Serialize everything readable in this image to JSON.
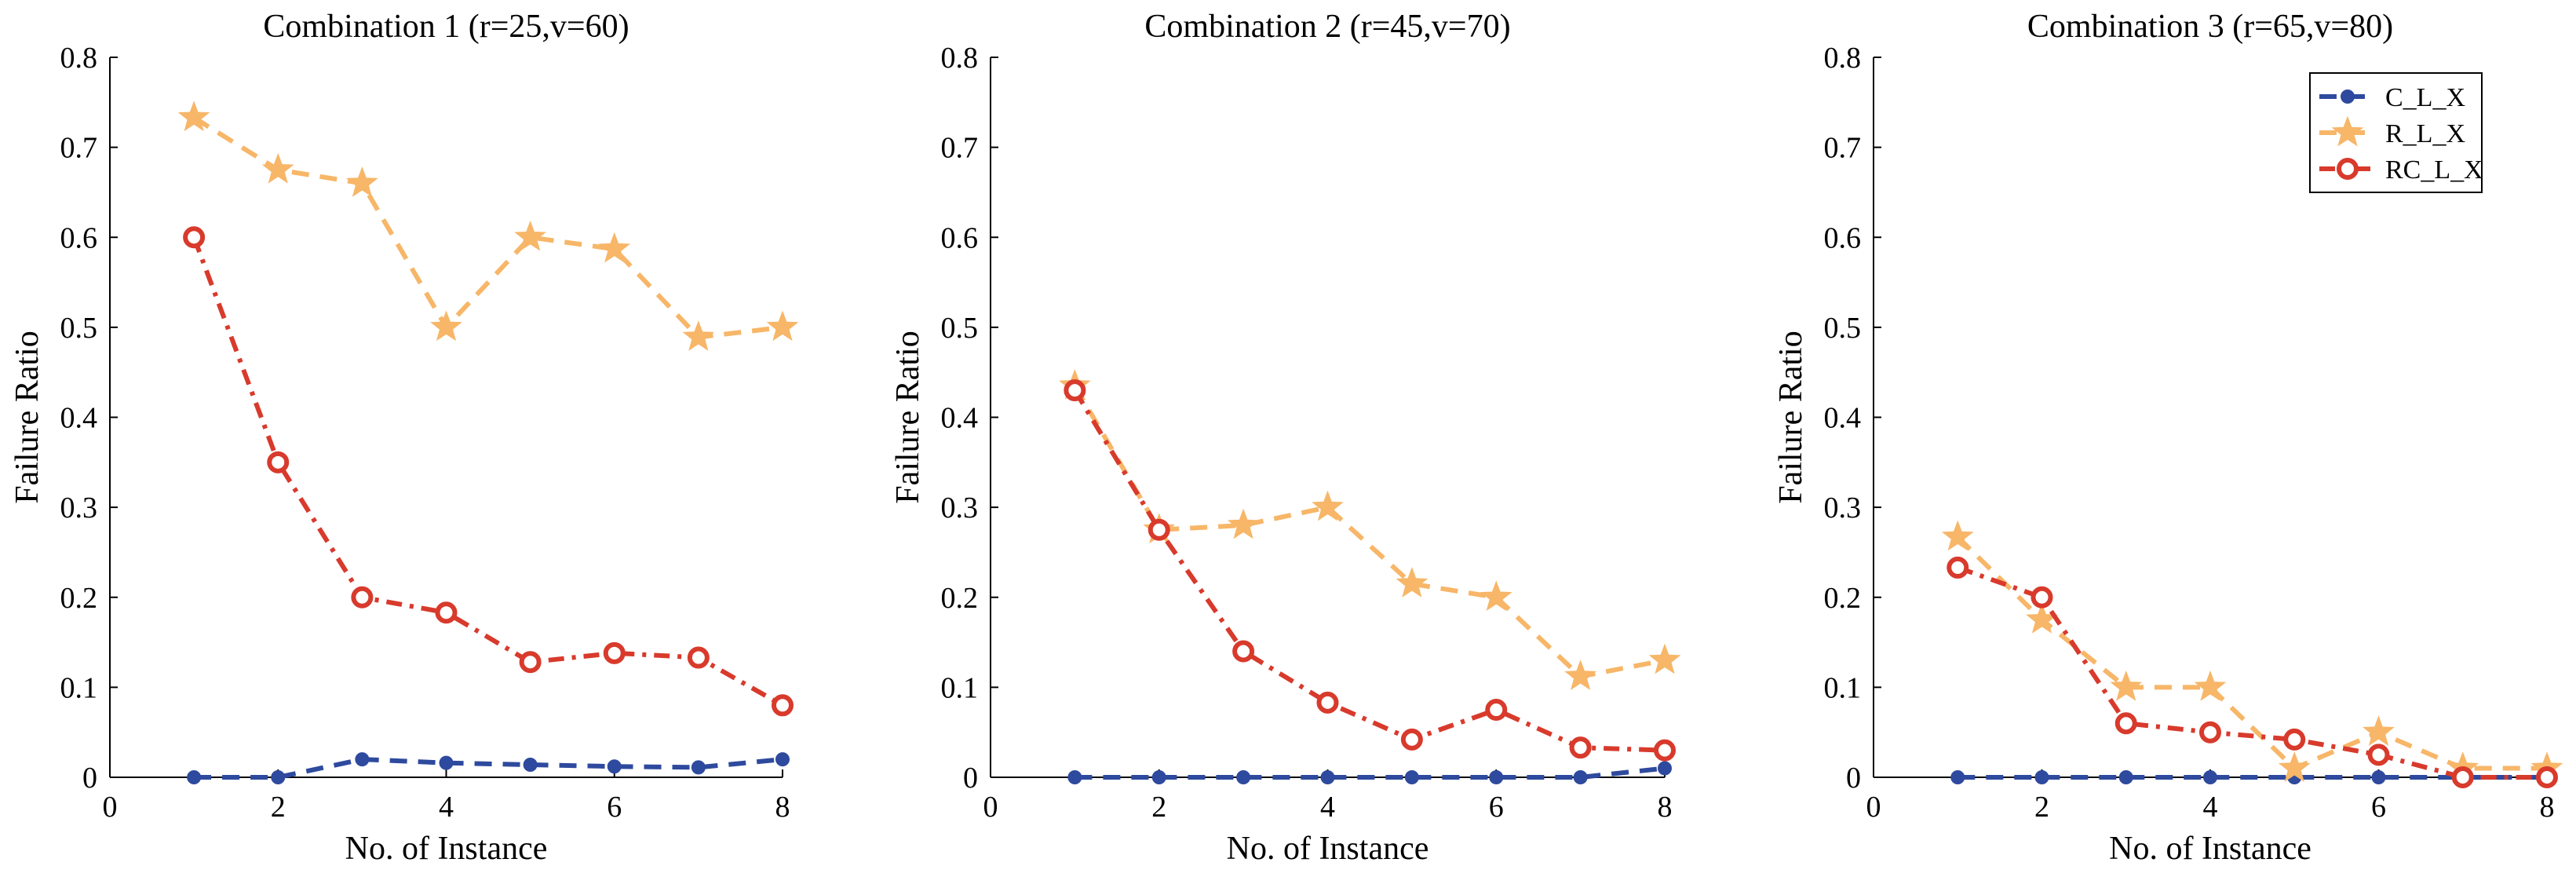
{
  "chart_data": [
    {
      "type": "line",
      "title": "Combination 1 (r=25,v=60)",
      "xlabel": "No. of Instance",
      "ylabel": "Failure Ratio",
      "xlim": [
        0,
        8
      ],
      "ylim": [
        0,
        0.8
      ],
      "xticks": [
        0,
        2,
        4,
        6,
        8
      ],
      "yticks": [
        0,
        0.1,
        0.2,
        0.3,
        0.4,
        0.5,
        0.6,
        0.7,
        0.8
      ],
      "x": [
        1,
        2,
        3,
        4,
        5,
        6,
        7,
        8
      ],
      "series": [
        {
          "name": "C_L_X",
          "values": [
            0,
            0,
            0.02,
            0.016,
            0.014,
            0.012,
            0.011,
            0.02
          ]
        },
        {
          "name": "R_L_X",
          "values": [
            0.733,
            0.675,
            0.66,
            0.5,
            0.6,
            0.587,
            0.489,
            0.5
          ]
        },
        {
          "name": "RC_L_X",
          "values": [
            0.6,
            0.35,
            0.2,
            0.183,
            0.128,
            0.138,
            0.133,
            0.08
          ]
        }
      ],
      "legend": false
    },
    {
      "type": "line",
      "title": "Combination 2 (r=45,v=70)",
      "xlabel": "No. of Instance",
      "ylabel": "Failure Ratio",
      "xlim": [
        0,
        8
      ],
      "ylim": [
        0,
        0.8
      ],
      "xticks": [
        0,
        2,
        4,
        6,
        8
      ],
      "yticks": [
        0,
        0.1,
        0.2,
        0.3,
        0.4,
        0.5,
        0.6,
        0.7,
        0.8
      ],
      "x": [
        1,
        2,
        3,
        4,
        5,
        6,
        7,
        8
      ],
      "series": [
        {
          "name": "C_L_X",
          "values": [
            0,
            0,
            0,
            0,
            0,
            0,
            0,
            0.01
          ]
        },
        {
          "name": "R_L_X",
          "values": [
            0.435,
            0.275,
            0.28,
            0.3,
            0.215,
            0.2,
            0.112,
            0.13
          ]
        },
        {
          "name": "RC_L_X",
          "values": [
            0.43,
            0.275,
            0.14,
            0.083,
            0.042,
            0.075,
            0.033,
            0.03
          ]
        }
      ],
      "legend": false
    },
    {
      "type": "line",
      "title": "Combination 3 (r=65,v=80)",
      "xlabel": "No. of Instance",
      "ylabel": "Failure Ratio",
      "xlim": [
        0,
        8
      ],
      "ylim": [
        0,
        0.8
      ],
      "xticks": [
        0,
        2,
        4,
        6,
        8
      ],
      "yticks": [
        0,
        0.1,
        0.2,
        0.3,
        0.4,
        0.5,
        0.6,
        0.7,
        0.8
      ],
      "x": [
        1,
        2,
        3,
        4,
        5,
        6,
        7,
        8
      ],
      "series": [
        {
          "name": "C_L_X",
          "values": [
            0,
            0,
            0,
            0,
            0,
            0,
            0,
            0
          ]
        },
        {
          "name": "R_L_X",
          "values": [
            0.267,
            0.175,
            0.1,
            0.1,
            0.01,
            0.05,
            0.01,
            0.01
          ]
        },
        {
          "name": "RC_L_X",
          "values": [
            0.233,
            0.2,
            0.06,
            0.05,
            0.042,
            0.025,
            0,
            0
          ]
        }
      ],
      "legend": true,
      "legend_position": "top-right"
    }
  ],
  "series_styles": {
    "C_L_X": {
      "color": "#2e4a9e",
      "dash": "dashed",
      "marker": "filled-circle"
    },
    "R_L_X": {
      "color": "#f7b668",
      "dash": "dashed",
      "marker": "star"
    },
    "RC_L_X": {
      "color": "#d83a2c",
      "dash": "dash-dot",
      "marker": "open-circle"
    }
  }
}
